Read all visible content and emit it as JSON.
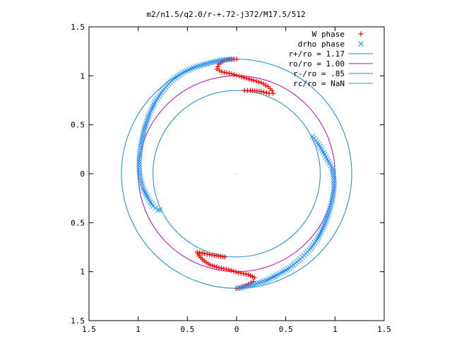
{
  "chart_data": {
    "type": "scatter",
    "title": "m2/n1.5/q2.0/r-+.72-j372/M17.5/512",
    "xlabel": "",
    "ylabel": "",
    "xlim": [
      -1.5,
      1.5
    ],
    "ylim": [
      -1.5,
      1.5
    ],
    "x_tick_labels": [
      "1.5",
      "1",
      "0.5",
      "0",
      "0.5",
      "1",
      "1.5"
    ],
    "y_tick_labels": [
      "1.5",
      "1",
      "0.5",
      "0",
      "0.5",
      "1",
      "1.5"
    ],
    "tick_values": [
      -1.5,
      -1,
      -0.5,
      0,
      0.5,
      1,
      1.5
    ],
    "grid": false,
    "legend_position": "top-right",
    "legend": [
      {
        "label": "W phase",
        "kind": "point",
        "marker": "+",
        "color": "#ff0000"
      },
      {
        "label": "drho phase",
        "kind": "point",
        "marker": "x",
        "color": "#1e90ff"
      },
      {
        "label": "r+/ro = 1.17",
        "kind": "circle",
        "radius": 1.17,
        "color": "#1a8acb"
      },
      {
        "label": "ro/ro = 1.00",
        "kind": "circle",
        "radius": 1.0,
        "color": "#c000c0"
      },
      {
        "label": "r-/ro = .85",
        "kind": "circle",
        "radius": 0.85,
        "color": "#1a8acb"
      },
      {
        "label": "rc/ro = NaN",
        "kind": "circle",
        "radius": null,
        "color": "#00c0c0"
      }
    ],
    "series": [
      {
        "name": "W phase",
        "color": "#ff0000",
        "marker": "+",
        "points": [
          [
            0.0,
            1.17
          ],
          [
            -0.05,
            1.17
          ],
          [
            -0.12,
            1.16
          ],
          [
            -0.18,
            1.12
          ],
          [
            -0.2,
            1.07
          ],
          [
            -0.15,
            1.04
          ],
          [
            -0.05,
            1.02
          ],
          [
            0.05,
            0.99
          ],
          [
            0.15,
            0.96
          ],
          [
            0.25,
            0.93
          ],
          [
            0.32,
            0.89
          ],
          [
            0.36,
            0.85
          ],
          [
            0.37,
            0.82
          ],
          [
            0.33,
            0.82
          ],
          [
            0.25,
            0.84
          ],
          [
            0.14,
            0.85
          ],
          [
            0.08,
            0.85
          ],
          [
            0.0,
            -1.17
          ],
          [
            0.05,
            -1.16
          ],
          [
            0.12,
            -1.13
          ],
          [
            0.17,
            -1.1
          ],
          [
            0.18,
            -1.06
          ],
          [
            0.12,
            -1.03
          ],
          [
            0.02,
            -1.01
          ],
          [
            -0.08,
            -0.98
          ],
          [
            -0.18,
            -0.96
          ],
          [
            -0.27,
            -0.93
          ],
          [
            -0.33,
            -0.89
          ],
          [
            -0.38,
            -0.84
          ],
          [
            -0.4,
            -0.8
          ],
          [
            -0.35,
            -0.81
          ],
          [
            -0.25,
            -0.83
          ],
          [
            -0.12,
            -0.85
          ]
        ]
      },
      {
        "name": "drho phase",
        "color": "#1e90ff",
        "marker": "x",
        "points": [
          [
            -0.05,
            1.17
          ],
          [
            -0.15,
            1.16
          ],
          [
            -0.28,
            1.13
          ],
          [
            -0.42,
            1.09
          ],
          [
            -0.55,
            1.03
          ],
          [
            -0.66,
            0.95
          ],
          [
            -0.75,
            0.85
          ],
          [
            -0.83,
            0.73
          ],
          [
            -0.89,
            0.6
          ],
          [
            -0.94,
            0.45
          ],
          [
            -0.97,
            0.3
          ],
          [
            -0.99,
            0.15
          ],
          [
            -0.99,
            0.05
          ],
          [
            -0.98,
            -0.05
          ],
          [
            -0.95,
            -0.15
          ],
          [
            -0.9,
            -0.25
          ],
          [
            -0.85,
            -0.33
          ],
          [
            -0.8,
            -0.37
          ],
          [
            -0.78,
            -0.37
          ],
          [
            0.77,
            0.38
          ],
          [
            0.82,
            0.32
          ],
          [
            0.87,
            0.24
          ],
          [
            0.92,
            0.15
          ],
          [
            0.97,
            0.06
          ],
          [
            0.99,
            -0.05
          ],
          [
            0.99,
            -0.15
          ],
          [
            0.97,
            -0.28
          ],
          [
            0.93,
            -0.42
          ],
          [
            0.88,
            -0.55
          ],
          [
            0.82,
            -0.67
          ],
          [
            0.74,
            -0.78
          ],
          [
            0.65,
            -0.87
          ],
          [
            0.54,
            -0.96
          ],
          [
            0.42,
            -1.03
          ],
          [
            0.3,
            -1.09
          ],
          [
            0.18,
            -1.13
          ],
          [
            0.06,
            -1.16
          ],
          [
            0.01,
            -1.17
          ]
        ]
      }
    ]
  }
}
